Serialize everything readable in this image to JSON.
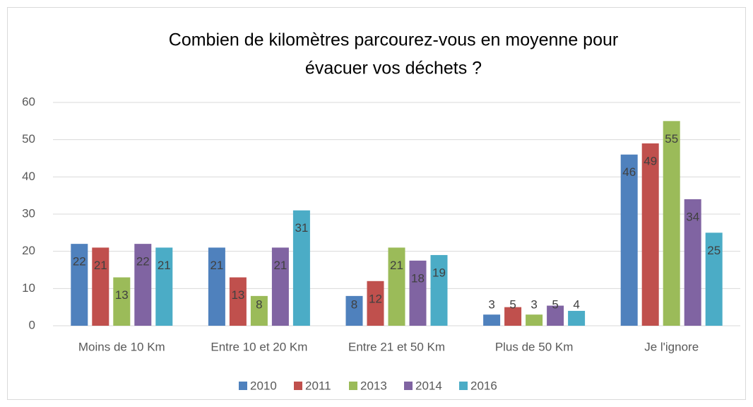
{
  "chart_data": {
    "type": "bar",
    "title": [
      "Combien de kilomètres parcourez-vous en moyenne pour",
      "évacuer vos déchets ?"
    ],
    "categories": [
      "Moins de 10 Km",
      "Entre 10 et 20 Km",
      "Entre 21 et 50 Km",
      "Plus de 50 Km",
      "Je l'ignore"
    ],
    "series": [
      {
        "name": "2010",
        "color": "#4f81bd",
        "values": [
          22,
          21,
          8,
          3,
          46
        ]
      },
      {
        "name": "2011",
        "color": "#c0504d",
        "values": [
          21,
          13,
          12,
          5,
          49
        ]
      },
      {
        "name": "2013",
        "color": "#9bbb59",
        "values": [
          13,
          8,
          21,
          3,
          55
        ]
      },
      {
        "name": "2014",
        "color": "#8064a2",
        "values": [
          22,
          21,
          17.5,
          5.4,
          34
        ],
        "value_labels": [
          "22",
          "21",
          "18",
          "5",
          "34"
        ]
      },
      {
        "name": "2016",
        "color": "#4bacc6",
        "values": [
          21,
          31,
          19,
          4,
          25
        ]
      }
    ],
    "ylim": [
      0,
      60
    ],
    "yticks": [
      0,
      10,
      20,
      30,
      40,
      50,
      60
    ],
    "grid": true,
    "legend": "bottom"
  }
}
